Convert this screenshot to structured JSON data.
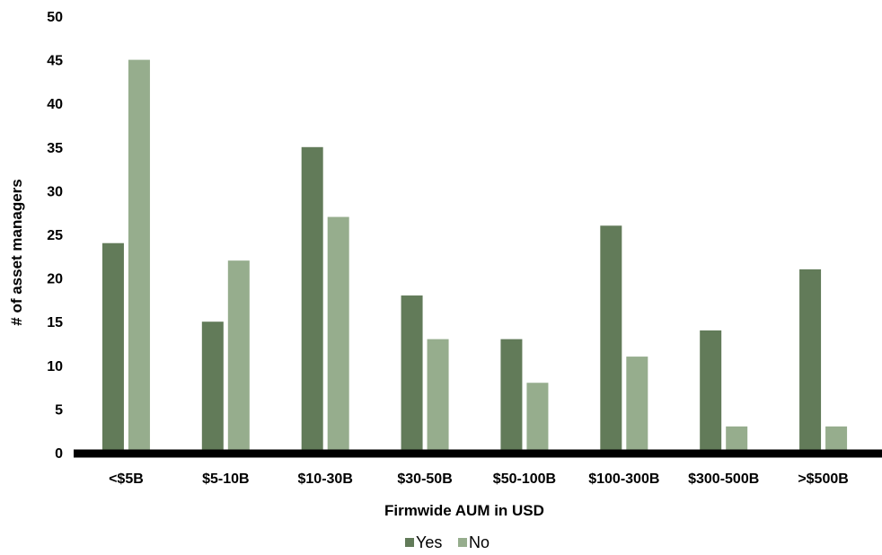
{
  "chart_data": {
    "type": "bar",
    "categories": [
      "<$5B",
      "$5-10B",
      "$10-30B",
      "$30-50B",
      "$50-100B",
      "$100-300B",
      "$300-500B",
      ">$500B"
    ],
    "series": [
      {
        "name": "Yes",
        "color": "#627b59",
        "values": [
          24,
          15,
          35,
          18,
          13,
          26,
          14,
          21
        ]
      },
      {
        "name": "No",
        "color": "#96ad8d",
        "values": [
          45,
          22,
          27,
          13,
          8,
          11,
          3,
          3
        ]
      }
    ],
    "xlabel": "Firmwide AUM in USD",
    "ylabel": "# of asset managers",
    "ylim": [
      0,
      50
    ],
    "yticks": [
      0,
      5,
      10,
      15,
      20,
      25,
      30,
      35,
      40,
      45,
      50
    ],
    "grid": false,
    "legend_position": "bottom-center",
    "axis_color": "#000000"
  }
}
